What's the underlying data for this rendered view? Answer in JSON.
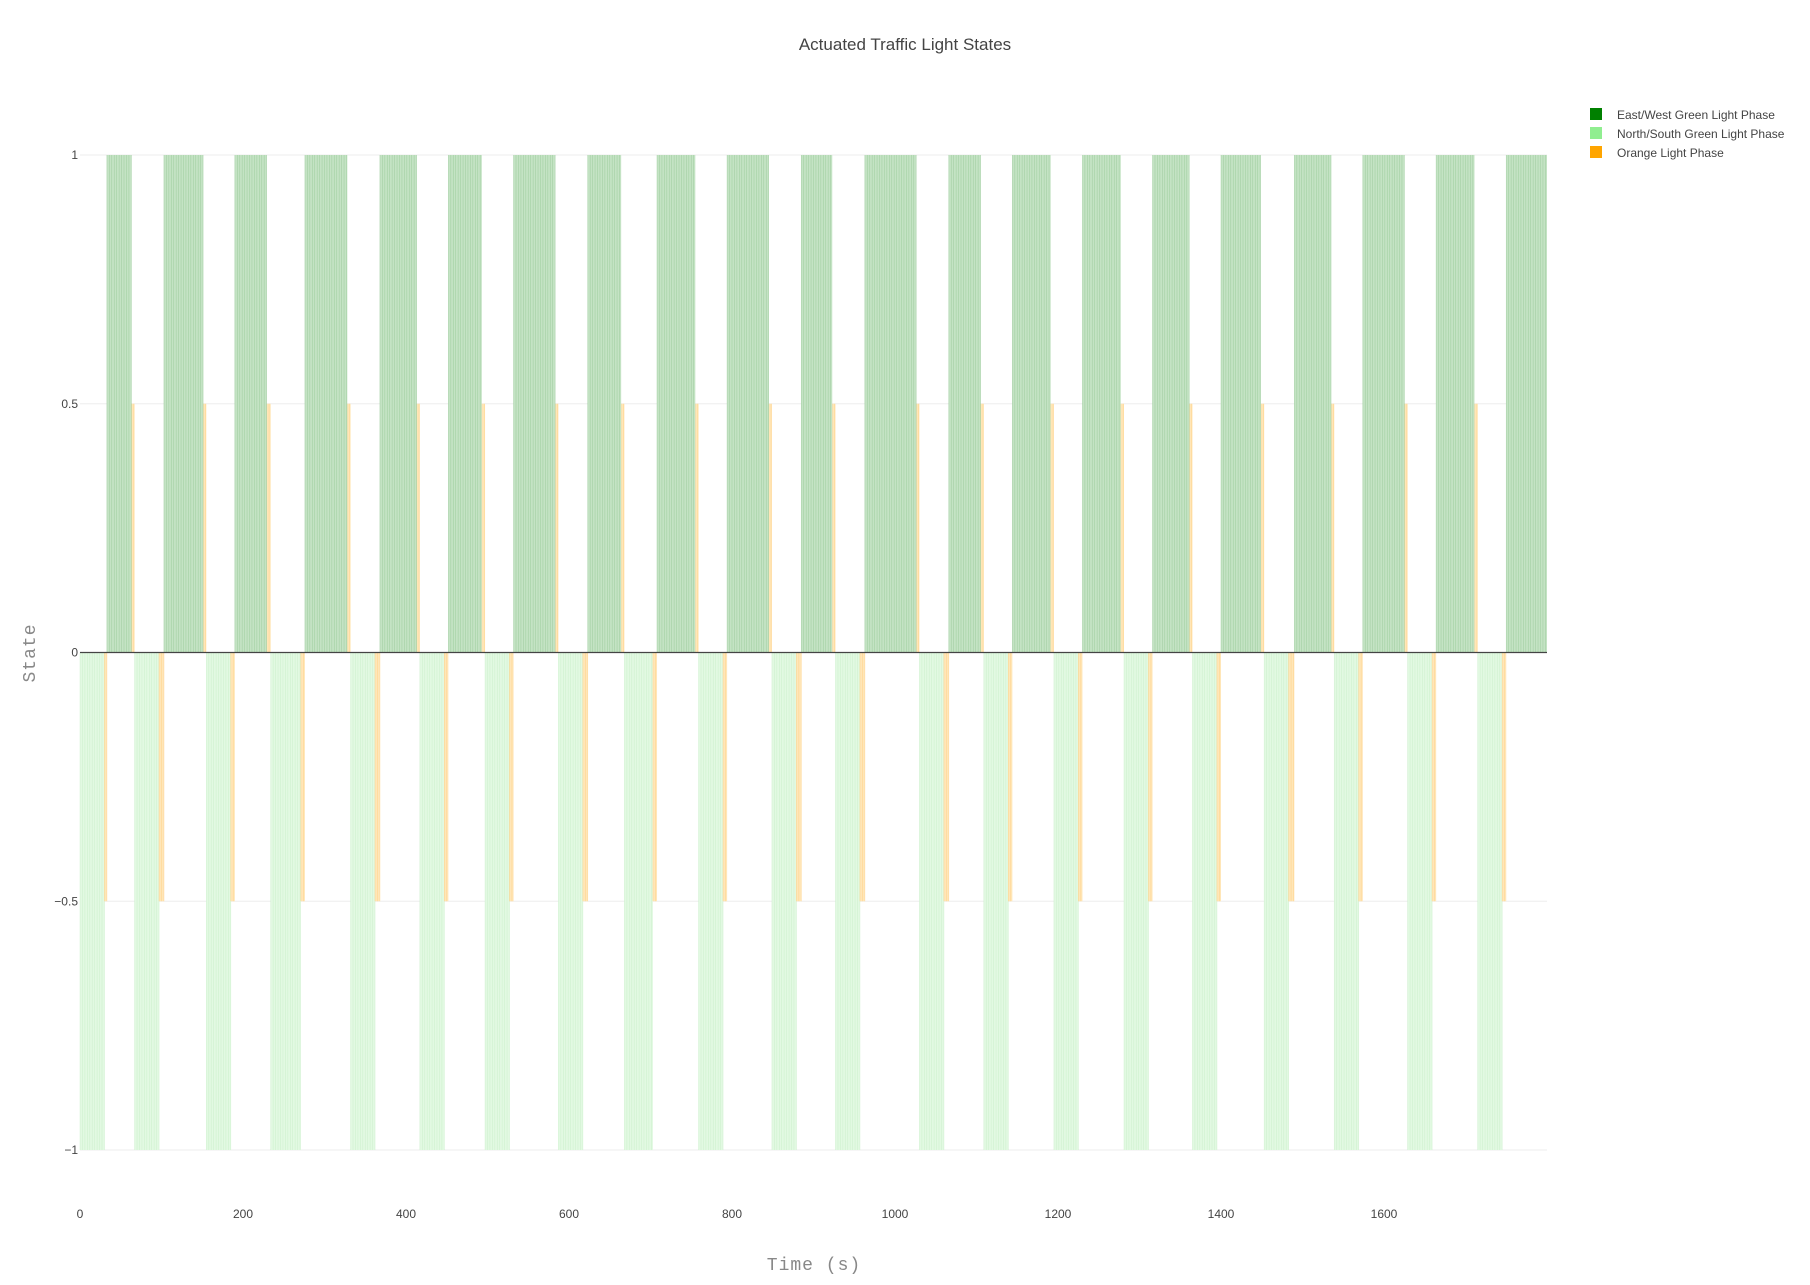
{
  "chart_data": {
    "type": "bar",
    "title": "Actuated Traffic Light States",
    "xlabel": "Time (s)",
    "ylabel": "State",
    "xlim": [
      0,
      1800
    ],
    "ylim": [
      -1,
      1
    ],
    "x_ticks": [
      0,
      200,
      400,
      600,
      800,
      1000,
      1200,
      1400,
      1600
    ],
    "y_ticks": [
      -1,
      -0.5,
      0,
      0.5,
      1
    ],
    "y_tick_labels": [
      "−1",
      "−0.5",
      "0",
      "0.5",
      "1"
    ],
    "legend_position": "top-right",
    "colors": {
      "ew_fill": "#c4e3c4",
      "ew_stroke": "#95c795",
      "ns_fill": "#e2f9e2",
      "ns_stroke": "#c8eec8",
      "orange_fill": "#ffe6b8",
      "orange_stroke": "#ffcf80",
      "grid": "#eeeeee",
      "zero_line": "#444444"
    },
    "series": [
      {
        "name": "East/West Green Light Phase",
        "legend_color": "#008000",
        "value": 1,
        "intervals": [
          [
            33,
            63
          ],
          [
            103,
            151
          ],
          [
            190,
            229
          ],
          [
            276,
            328
          ],
          [
            368,
            413
          ],
          [
            452,
            493
          ],
          [
            532,
            583
          ],
          [
            623,
            664
          ],
          [
            708,
            755
          ],
          [
            794,
            845
          ],
          [
            885,
            923
          ],
          [
            963,
            1026
          ],
          [
            1066,
            1105
          ],
          [
            1144,
            1191
          ],
          [
            1230,
            1277
          ],
          [
            1316,
            1361
          ],
          [
            1400,
            1449
          ],
          [
            1490,
            1535
          ],
          [
            1574,
            1625
          ],
          [
            1664,
            1711
          ],
          [
            1750,
            1800
          ]
        ]
      },
      {
        "name": "North/South Green Light Phase",
        "legend_color": "#90ee90",
        "value": -1,
        "intervals": [
          [
            0,
            30
          ],
          [
            67,
            97
          ],
          [
            155,
            185
          ],
          [
            234,
            271
          ],
          [
            332,
            362
          ],
          [
            417,
            447
          ],
          [
            497,
            527
          ],
          [
            587,
            617
          ],
          [
            668,
            703
          ],
          [
            759,
            789
          ],
          [
            849,
            879
          ],
          [
            927,
            957
          ],
          [
            1030,
            1060
          ],
          [
            1109,
            1139
          ],
          [
            1195,
            1225
          ],
          [
            1281,
            1311
          ],
          [
            1365,
            1395
          ],
          [
            1453,
            1483
          ],
          [
            1539,
            1569
          ],
          [
            1629,
            1659
          ],
          [
            1715,
            1745
          ]
        ]
      },
      {
        "name": "Orange Light Phase",
        "legend_color": "#ffa500",
        "value": 0.5,
        "intervals_pos": [
          [
            63,
            67
          ],
          [
            151,
            155
          ],
          [
            229,
            234
          ],
          [
            328,
            332
          ],
          [
            413,
            417
          ],
          [
            493,
            497
          ],
          [
            583,
            587
          ],
          [
            664,
            668
          ],
          [
            755,
            759
          ],
          [
            845,
            849
          ],
          [
            923,
            927
          ],
          [
            1026,
            1030
          ],
          [
            1105,
            1109
          ],
          [
            1191,
            1195
          ],
          [
            1277,
            1281
          ],
          [
            1361,
            1365
          ],
          [
            1449,
            1453
          ],
          [
            1535,
            1539
          ],
          [
            1625,
            1629
          ],
          [
            1711,
            1715
          ]
        ],
        "intervals_neg": [
          [
            30,
            33
          ],
          [
            97,
            103
          ],
          [
            185,
            190
          ],
          [
            271,
            276
          ],
          [
            362,
            368
          ],
          [
            447,
            452
          ],
          [
            527,
            532
          ],
          [
            617,
            623
          ],
          [
            703,
            708
          ],
          [
            789,
            794
          ],
          [
            879,
            885
          ],
          [
            957,
            963
          ],
          [
            1060,
            1066
          ],
          [
            1139,
            1144
          ],
          [
            1225,
            1230
          ],
          [
            1311,
            1316
          ],
          [
            1395,
            1400
          ],
          [
            1483,
            1490
          ],
          [
            1569,
            1574
          ],
          [
            1659,
            1664
          ],
          [
            1745,
            1750
          ]
        ]
      }
    ]
  }
}
